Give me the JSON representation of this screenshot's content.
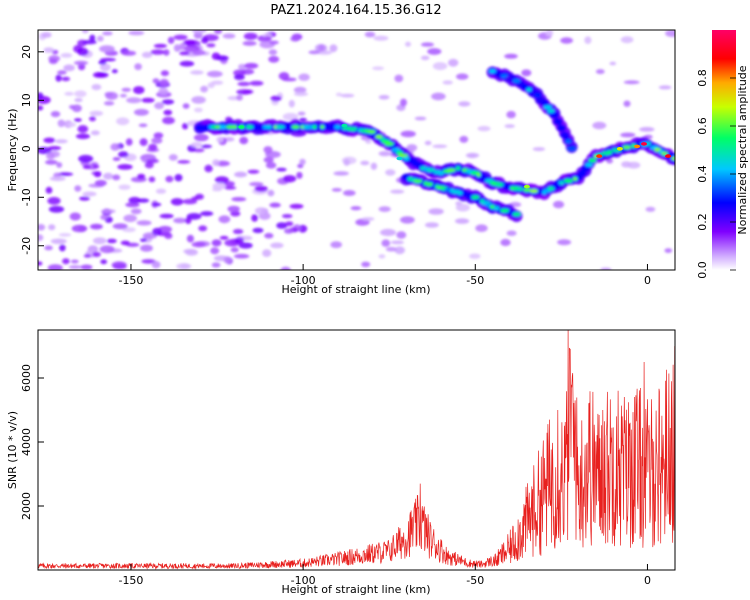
{
  "title": "PAZ1.2024.164.15.36.G12",
  "chart_data": [
    {
      "type": "heatmap",
      "xlabel": "Height of straight line (km)",
      "ylabel": "Frequency (Hz)",
      "xlim": [
        -177,
        8
      ],
      "ylim": [
        -25,
        24.5
      ],
      "x_ticks": [
        -150,
        -100,
        -50,
        0
      ],
      "y_ticks": [
        -20,
        -10,
        0,
        10,
        20
      ],
      "colorbar": {
        "label": "Normalized spectral amplitude",
        "range": [
          0,
          1
        ],
        "ticks": [
          "0.0",
          "0.2",
          "0.4",
          "0.6",
          "0.8"
        ],
        "colors": [
          "#ffffff",
          "#7f00ff",
          "#0000ff",
          "#00ffff",
          "#00ff00",
          "#ffff00",
          "#ff0000",
          "#ff0066"
        ]
      },
      "ridge": {
        "main": [
          [
            -130,
            4.5
          ],
          [
            -120,
            4.5
          ],
          [
            -110,
            4.5
          ],
          [
            -100,
            4.5
          ],
          [
            -90,
            4.5
          ],
          [
            -80,
            3.5
          ],
          [
            -75,
            1
          ],
          [
            -70,
            -2
          ],
          [
            -65,
            -4
          ],
          [
            -60,
            -5
          ],
          [
            -55,
            -4
          ],
          [
            -50,
            -5
          ],
          [
            -45,
            -7
          ],
          [
            -40,
            -8
          ],
          [
            -35,
            -8.5
          ],
          [
            -30,
            -9
          ],
          [
            -25,
            -7
          ],
          [
            -20,
            -6
          ],
          [
            -15,
            -1.5
          ],
          [
            -10,
            -0.5
          ],
          [
            -5,
            0.5
          ],
          [
            0,
            1
          ],
          [
            5,
            -1
          ],
          [
            8,
            -2
          ]
        ],
        "branch": [
          [
            -70,
            -6
          ],
          [
            -60,
            -8
          ],
          [
            -50,
            -10
          ],
          [
            -45,
            -12
          ],
          [
            -38,
            -13.5
          ]
        ],
        "upper": [
          [
            -45,
            16
          ],
          [
            -38,
            14
          ],
          [
            -32,
            11
          ],
          [
            -27,
            7
          ],
          [
            -24,
            3
          ],
          [
            -22,
            0
          ]
        ]
      }
    },
    {
      "type": "line",
      "xlabel": "Height of straight line (km)",
      "ylabel": "SNR (10 * v/v)",
      "xlim": [
        -177,
        8
      ],
      "ylim": [
        0,
        7500
      ],
      "x_ticks": [
        -150,
        -100,
        -50,
        0
      ],
      "y_ticks": [
        2000,
        4000,
        6000
      ],
      "series_color": "#e8201e",
      "envelope": [
        [
          -177,
          150
        ],
        [
          -120,
          150
        ],
        [
          -100,
          250
        ],
        [
          -90,
          400
        ],
        [
          -80,
          600
        ],
        [
          -75,
          700
        ],
        [
          -70,
          1200
        ],
        [
          -66,
          1800
        ],
        [
          -63,
          1100
        ],
        [
          -58,
          500
        ],
        [
          -52,
          250
        ],
        [
          -48,
          200
        ],
        [
          -44,
          400
        ],
        [
          -40,
          900
        ],
        [
          -35,
          2000
        ],
        [
          -30,
          3200
        ],
        [
          -26,
          4200
        ],
        [
          -24,
          3800
        ],
        [
          -22,
          6000
        ],
        [
          -20,
          3500
        ],
        [
          -17,
          4500
        ],
        [
          -14,
          3800
        ],
        [
          -10,
          4600
        ],
        [
          -6,
          4100
        ],
        [
          -3,
          4400
        ],
        [
          0,
          4000
        ],
        [
          3,
          4300
        ],
        [
          6,
          4900
        ],
        [
          8,
          5300
        ]
      ],
      "peaks": [
        [
          -66,
          2700
        ],
        [
          -23,
          7500
        ],
        [
          -22.5,
          6900
        ],
        [
          -26,
          5000
        ],
        [
          -21,
          5300
        ],
        [
          -17,
          5200
        ],
        [
          -13,
          5000
        ],
        [
          -9,
          4800
        ],
        [
          -1,
          6500
        ],
        [
          7,
          5900
        ]
      ]
    }
  ]
}
